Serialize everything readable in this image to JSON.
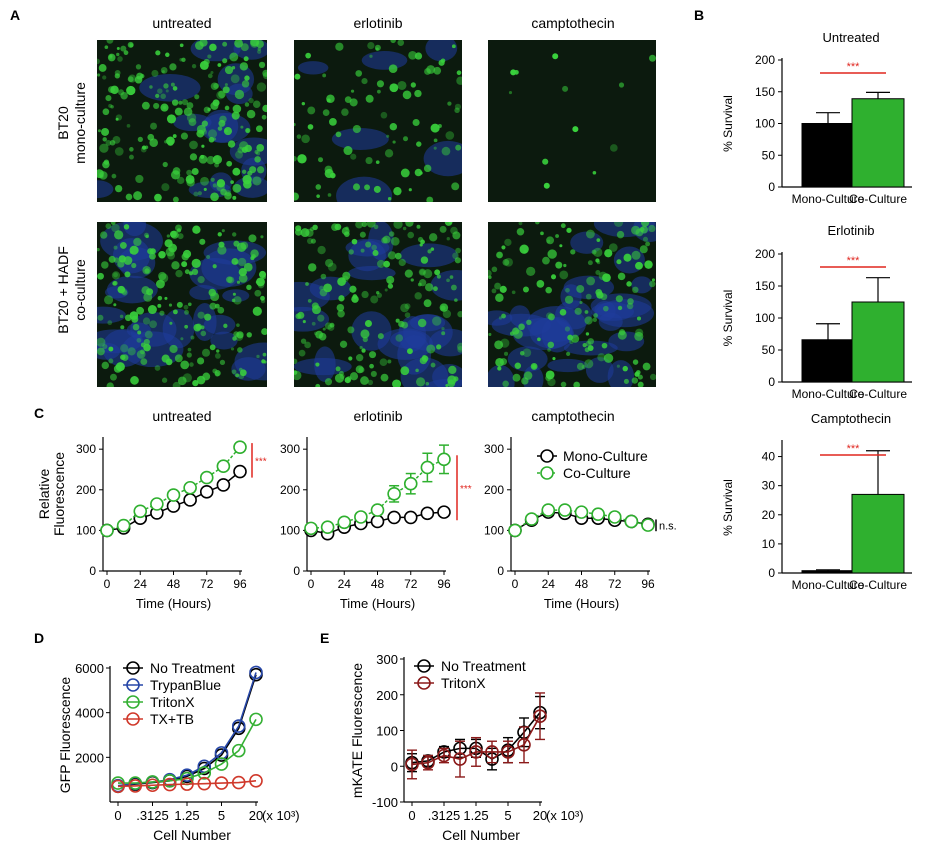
{
  "panel_letters": {
    "A": "A",
    "B": "B",
    "C": "C",
    "D": "D",
    "E": "E"
  },
  "colors": {
    "mono": "#000000",
    "co": "#2fb02f",
    "sig": "#e0261f",
    "d_none": "#000000",
    "d_tb": "#2747a8",
    "d_tx": "#35b034",
    "d_txtb": "#d0392b",
    "e_none": "#000000",
    "e_tx": "#8b1a1a",
    "micro_bg": "#0c1a0e",
    "micro_green": "#39d03c",
    "micro_blue": "#1f3c9c"
  },
  "panel_a": {
    "column_labels": [
      "untreated",
      "erlotinib",
      "camptothecin"
    ],
    "row_labels": [
      [
        "BT20",
        "mono-culture"
      ],
      [
        "BT20 + HADF",
        "co-culture"
      ]
    ],
    "images": [
      {
        "row": 0,
        "col": 0,
        "green_density": 0.85,
        "blue_density": 0.35
      },
      {
        "row": 0,
        "col": 1,
        "green_density": 0.35,
        "blue_density": 0.15
      },
      {
        "row": 0,
        "col": 2,
        "green_density": 0.03,
        "blue_density": 0.0
      },
      {
        "row": 1,
        "col": 0,
        "green_density": 0.8,
        "blue_density": 0.6
      },
      {
        "row": 1,
        "col": 1,
        "green_density": 0.7,
        "blue_density": 0.55
      },
      {
        "row": 1,
        "col": 2,
        "green_density": 0.6,
        "blue_density": 0.7
      }
    ]
  },
  "chart_data": [
    {
      "id": "B-untreated",
      "type": "bar",
      "title": "Untreated",
      "ylabel": "% Survival",
      "categories": [
        "Mono-Culture",
        "Co-Culture"
      ],
      "values": [
        100,
        139
      ],
      "errors": [
        17,
        10
      ],
      "ylim": [
        0,
        200
      ],
      "yticks": [
        "0",
        "50",
        "100",
        "150",
        "200"
      ],
      "yticks_values": [
        0,
        50,
        100,
        150,
        200
      ],
      "significance": "***"
    },
    {
      "id": "B-erlotinib",
      "type": "bar",
      "title": "Erlotinib",
      "ylabel": "% Survival",
      "categories": [
        "Mono-Culture",
        "Co-Culture"
      ],
      "values": [
        66,
        125
      ],
      "errors": [
        25,
        38
      ],
      "ylim": [
        0,
        200
      ],
      "yticks": [
        "0",
        "50",
        "100",
        "150",
        "200"
      ],
      "yticks_values": [
        0,
        50,
        100,
        150,
        200
      ],
      "significance": "***"
    },
    {
      "id": "B-camptothecin",
      "type": "bar",
      "title": "Camptothecin",
      "ylabel": "% Survival",
      "categories": [
        "Mono-Culture",
        "Co-Culture"
      ],
      "values": [
        0.8,
        27
      ],
      "errors": [
        0.3,
        15
      ],
      "ylim": [
        0,
        45
      ],
      "yticks": [
        "0",
        "10",
        "20",
        "30",
        "40"
      ],
      "yticks_values": [
        0,
        10,
        20,
        30,
        40
      ],
      "significance": "***"
    },
    {
      "id": "C-untreated",
      "type": "line",
      "title": "untreated",
      "ylabel": [
        "Relative",
        "Fluorescence"
      ],
      "xlabel": "Time  (Hours)",
      "x": [
        0,
        12,
        24,
        36,
        48,
        60,
        72,
        84,
        96
      ],
      "xticks": [
        "0",
        "24",
        "48",
        "72",
        "96"
      ],
      "xticks_values": [
        0,
        24,
        48,
        72,
        96
      ],
      "yticks": [
        "0",
        "100",
        "200",
        "300"
      ],
      "yticks_values": [
        0,
        100,
        200,
        300
      ],
      "ylim": [
        0,
        330
      ],
      "xlim": [
        0,
        96
      ],
      "series": [
        {
          "name": "Mono-Culture",
          "values": [
            100,
            106,
            130,
            143,
            160,
            175,
            195,
            212,
            245
          ],
          "errors": [
            0,
            0,
            0,
            0,
            0,
            0,
            0,
            0,
            0
          ]
        },
        {
          "name": "Co-Culture",
          "values": [
            100,
            112,
            147,
            165,
            187,
            205,
            230,
            258,
            305
          ],
          "errors": [
            0,
            0,
            0,
            0,
            0,
            0,
            0,
            0,
            0
          ]
        }
      ],
      "significance": "***"
    },
    {
      "id": "C-erlotinib",
      "type": "line",
      "title": "erlotinib",
      "xlabel": "Time  (Hours)",
      "x": [
        0,
        12,
        24,
        36,
        48,
        60,
        72,
        84,
        96
      ],
      "xticks": [
        "0",
        "24",
        "48",
        "72",
        "96"
      ],
      "xticks_values": [
        0,
        24,
        48,
        72,
        96
      ],
      "yticks": [
        "0",
        "100",
        "200",
        "300"
      ],
      "yticks_values": [
        0,
        100,
        200,
        300
      ],
      "ylim": [
        0,
        330
      ],
      "xlim": [
        0,
        96
      ],
      "series": [
        {
          "name": "Mono-Culture",
          "values": [
            100,
            92,
            108,
            117,
            122,
            132,
            132,
            142,
            145
          ],
          "errors": [
            0,
            0,
            0,
            0,
            0,
            0,
            0,
            0,
            0
          ]
        },
        {
          "name": "Co-Culture",
          "values": [
            105,
            108,
            120,
            133,
            150,
            190,
            215,
            255,
            275
          ],
          "errors": [
            0,
            0,
            0,
            0,
            0,
            20,
            25,
            35,
            35
          ]
        }
      ],
      "significance": "***"
    },
    {
      "id": "C-camptothecin",
      "type": "line",
      "title": "camptothecin",
      "xlabel": "Time  (Hours)",
      "x": [
        0,
        12,
        24,
        36,
        48,
        60,
        72,
        84,
        96
      ],
      "xticks": [
        "0",
        "24",
        "48",
        "72",
        "96"
      ],
      "xticks_values": [
        0,
        24,
        48,
        72,
        96
      ],
      "yticks": [
        "0",
        "100",
        "200",
        "300"
      ],
      "yticks_values": [
        0,
        100,
        200,
        300
      ],
      "ylim": [
        0,
        330
      ],
      "xlim": [
        0,
        96
      ],
      "series": [
        {
          "name": "Mono-Culture",
          "values": [
            100,
            125,
            145,
            142,
            130,
            130,
            125,
            122,
            115
          ],
          "errors": [
            0,
            0,
            0,
            0,
            0,
            0,
            0,
            0,
            0
          ]
        },
        {
          "name": "Co-Culture",
          "values": [
            100,
            128,
            150,
            150,
            145,
            140,
            133,
            122,
            113
          ],
          "errors": [
            0,
            0,
            0,
            0,
            0,
            0,
            0,
            0,
            0
          ]
        }
      ],
      "significance": "n.s.",
      "legend": [
        "Mono-Culture",
        "Co-Culture"
      ]
    },
    {
      "id": "D",
      "type": "line",
      "ylabel": "GFP Fluorescence",
      "xlabel": "Cell Number",
      "x_unit": "(x 10³)",
      "x": [
        "0",
        "0.156",
        ".3125",
        "0.625",
        "1.25",
        "2.5",
        "5",
        "10",
        "20"
      ],
      "xticks": [
        "0",
        ".3125",
        "1.25",
        "5",
        "20"
      ],
      "yticks": [
        "2000",
        "4000",
        "6000"
      ],
      "yticks_values": [
        2000,
        4000,
        6000
      ],
      "ylim": [
        0,
        6000
      ],
      "series": [
        {
          "name": "No Treatment",
          "values": [
            700,
            800,
            870,
            950,
            1150,
            1500,
            2100,
            3300,
            5700
          ]
        },
        {
          "name": "TrypanBlue",
          "values": [
            730,
            830,
            890,
            1000,
            1200,
            1600,
            2200,
            3400,
            5800
          ]
        },
        {
          "name": "TritonX",
          "values": [
            850,
            850,
            900,
            950,
            1050,
            1300,
            1700,
            2300,
            3700
          ]
        },
        {
          "name": "TX+TB",
          "values": [
            700,
            720,
            750,
            780,
            800,
            820,
            850,
            870,
            950
          ]
        }
      ],
      "legend": [
        "No Treatment",
        "TrypanBlue",
        "TritonX",
        "TX+TB"
      ]
    },
    {
      "id": "E",
      "type": "line",
      "ylabel": "mKATE Fluorescence",
      "xlabel": "Cell Number",
      "x_unit": "(x 10³)",
      "x": [
        "0",
        "0.156",
        ".3125",
        "0.625",
        "1.25",
        "2.5",
        "5",
        "10",
        "20"
      ],
      "xticks": [
        "0",
        ".3125",
        "1.25",
        "5",
        "20"
      ],
      "yticks": [
        "-100",
        "0",
        "100",
        "200",
        "300"
      ],
      "yticks_values": [
        -100,
        0,
        100,
        200,
        300
      ],
      "ylim": [
        -100,
        300
      ],
      "series": [
        {
          "name": "No Treatment",
          "values": [
            10,
            15,
            40,
            50,
            50,
            20,
            45,
            95,
            150
          ],
          "errors": [
            25,
            15,
            15,
            25,
            25,
            30,
            35,
            40,
            45
          ]
        },
        {
          "name": "TritonX",
          "values": [
            5,
            10,
            30,
            20,
            40,
            40,
            40,
            60,
            140
          ],
          "errors": [
            40,
            20,
            20,
            50,
            40,
            30,
            30,
            50,
            65
          ]
        }
      ],
      "legend": [
        "No Treatment",
        "TritonX"
      ]
    }
  ]
}
